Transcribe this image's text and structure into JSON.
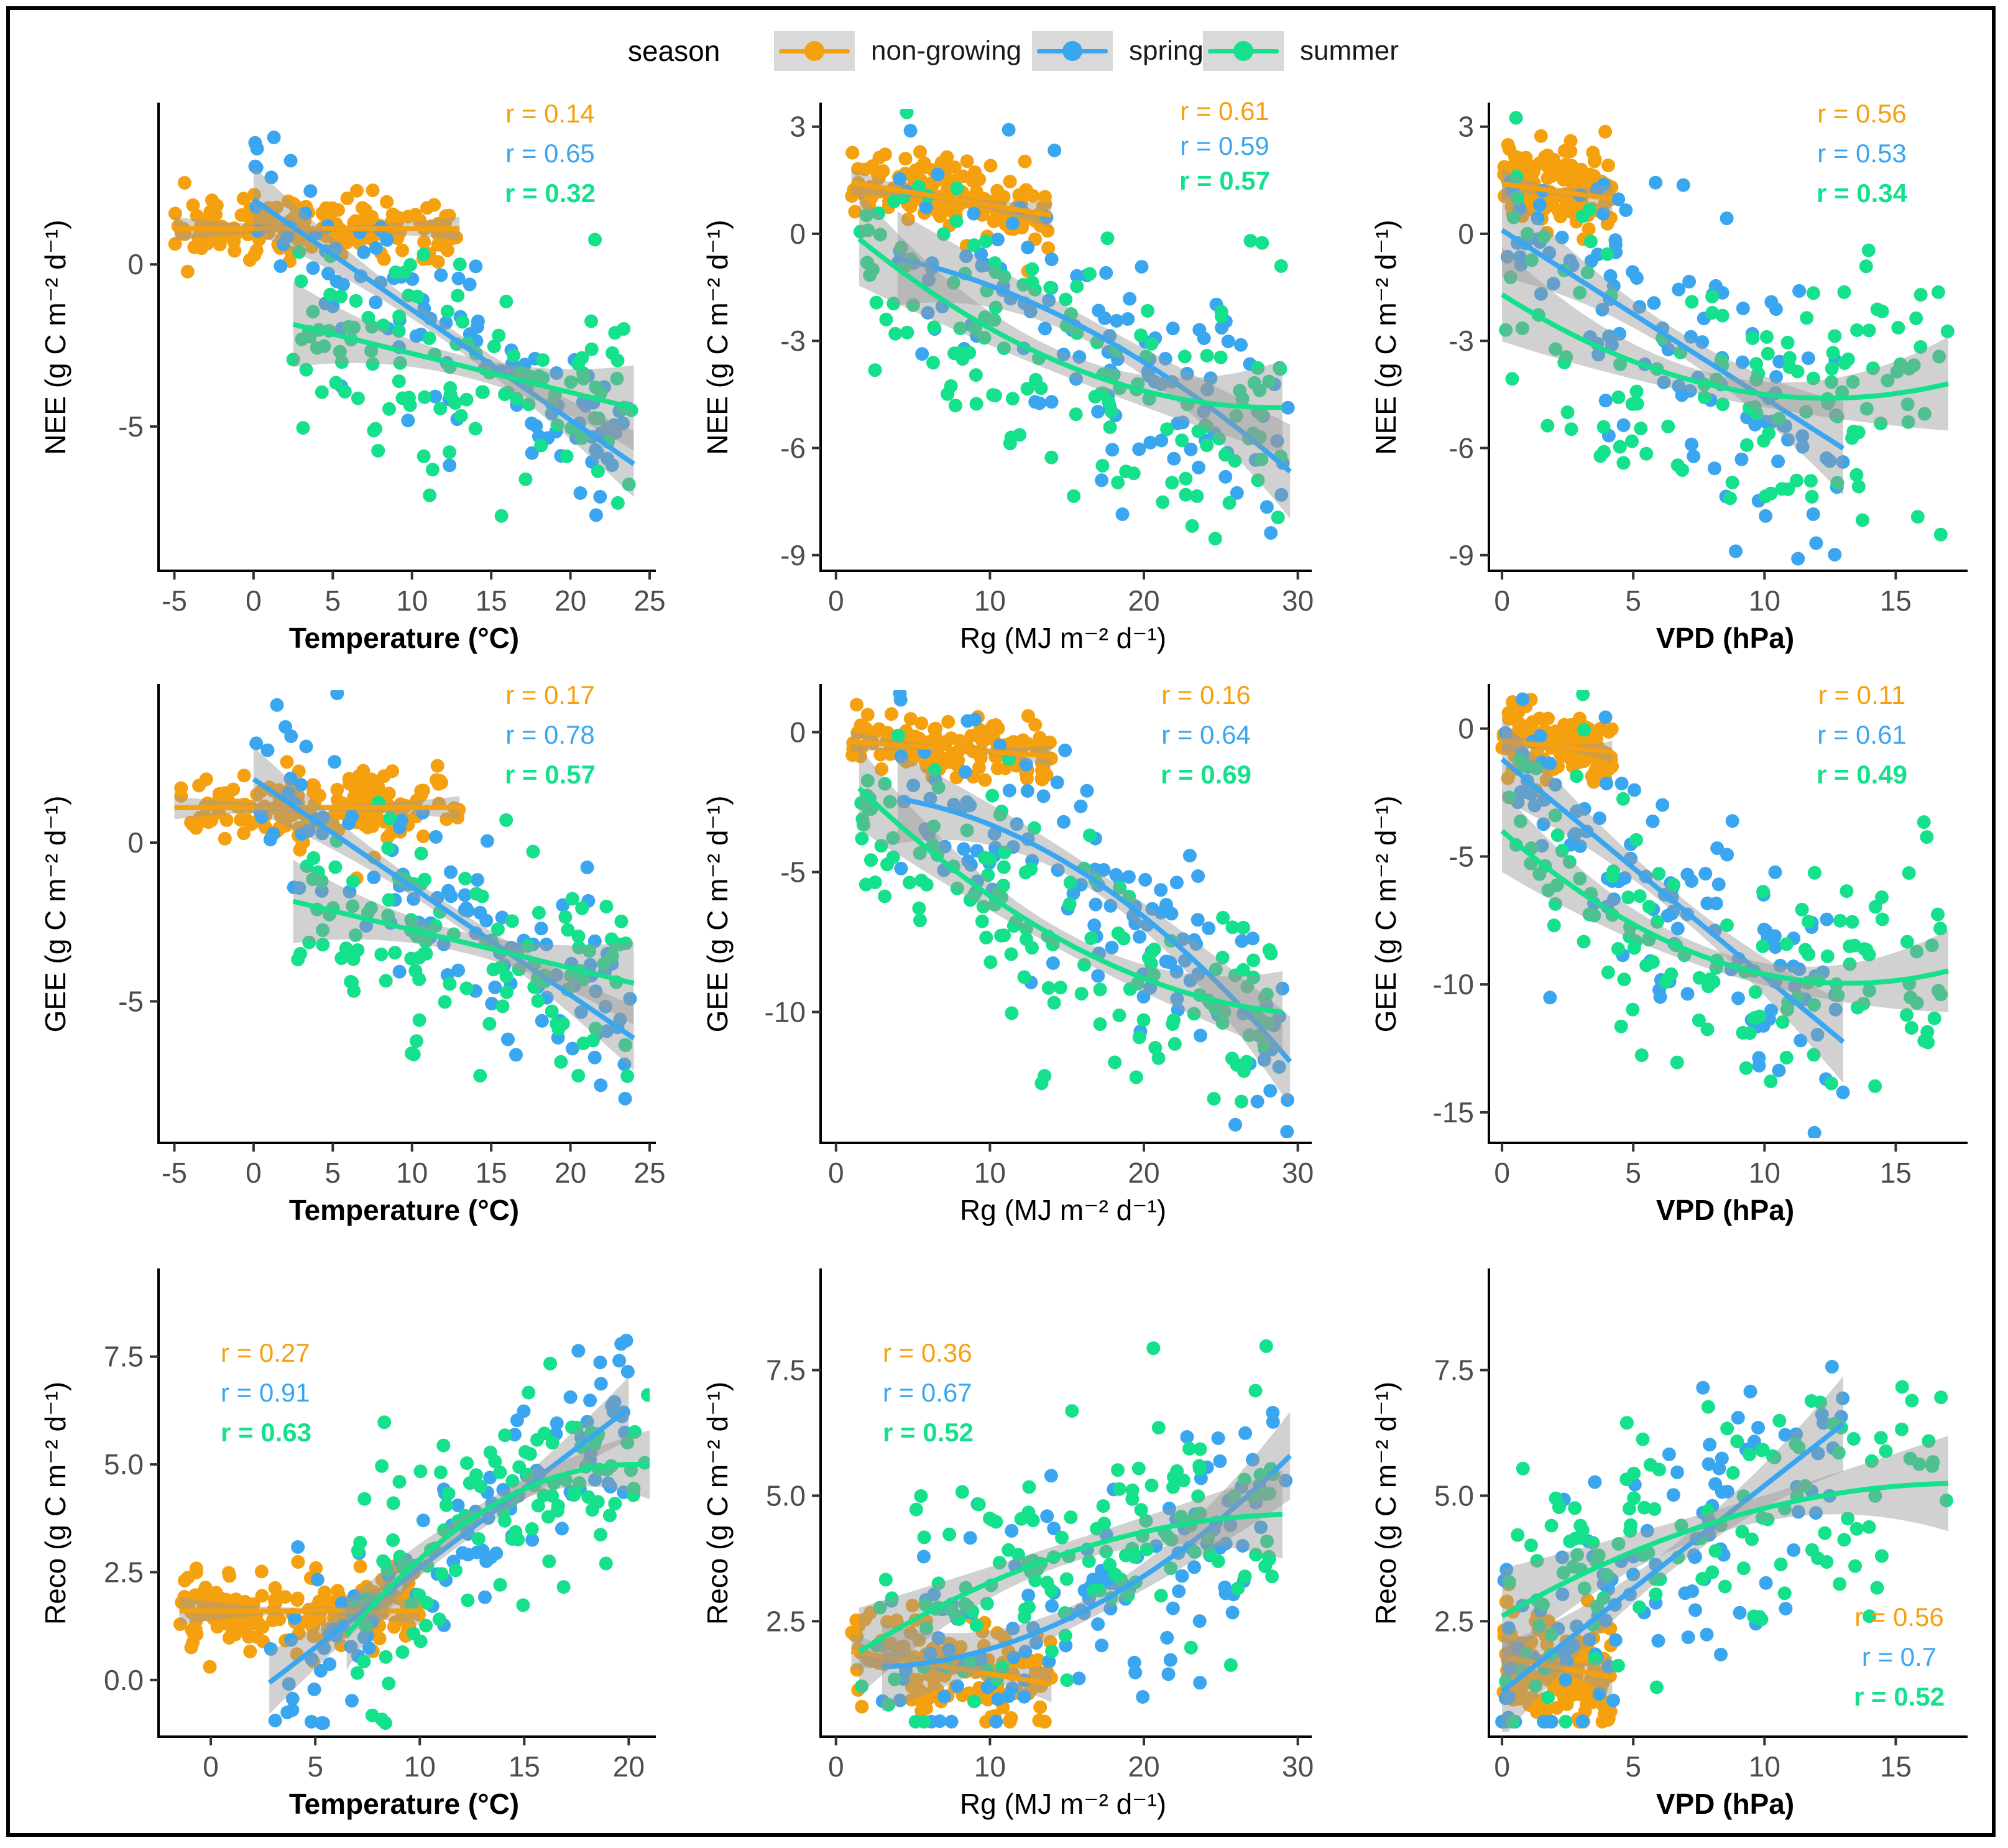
{
  "legend": {
    "title": "season",
    "items": [
      {
        "label": "non-growing",
        "color": "#F5A00F"
      },
      {
        "label": "spring",
        "color": "#3AA6F0"
      },
      {
        "label": "summer",
        "color": "#15E08B"
      }
    ]
  },
  "chart_data": [
    {
      "type": "scatter",
      "id": "nee-temp",
      "ylabel": "NEE (g C m⁻² d⁻¹)",
      "xlabel": "Temperature (°C)",
      "xlabel_bold": true,
      "xlim": [
        -6,
        25
      ],
      "ylim": [
        -9.3,
        4.8
      ],
      "xticks": [
        -5,
        0,
        5,
        10,
        15,
        20,
        25
      ],
      "yticks": [
        0,
        -5
      ],
      "r": [
        {
          "season": "non-growing",
          "text": "r = 0.14"
        },
        {
          "season": "spring",
          "text": "r = 0.65"
        },
        {
          "season": "summer",
          "text": "r = 0.32"
        }
      ],
      "r_pos": "top-right",
      "series": [
        {
          "season": "non-growing",
          "xr": [
            -5,
            13
          ],
          "fit": [
            1.1,
            0.0,
            0.0
          ],
          "yc": 1.2,
          "ys": 0.5,
          "n": 170
        },
        {
          "season": "spring",
          "xr": [
            0,
            24
          ],
          "fit": [
            2.0,
            -0.34,
            0.0
          ],
          "yc": 0,
          "ys": 1.4,
          "n": 110
        },
        {
          "season": "summer",
          "xr": [
            2.5,
            24
          ],
          "fit": [
            -1.55,
            -0.12,
            0.0
          ],
          "yc": 0,
          "ys": 1.8,
          "n": 120
        }
      ]
    },
    {
      "type": "scatter",
      "id": "nee-rg",
      "ylabel": "NEE (g C m⁻² d⁻¹)",
      "xlabel": "Rg (MJ m⁻² d⁻¹)",
      "xlabel_bold": false,
      "xlim": [
        -1,
        30.5
      ],
      "ylim": [
        -9.3,
        3.5
      ],
      "xticks": [
        0,
        10,
        20,
        30
      ],
      "yticks": [
        3,
        0,
        -3,
        -6,
        -9
      ],
      "r": [
        {
          "season": "non-growing",
          "text": "r = 0.61"
        },
        {
          "season": "spring",
          "text": "r = 0.59"
        },
        {
          "season": "summer",
          "text": "r = 0.57"
        }
      ],
      "r_pos": "top-right-small",
      "series": [
        {
          "season": "non-growing",
          "xr": [
            1,
            14
          ],
          "fit": [
            1.5,
            -0.07,
            0.0
          ],
          "yc": 0,
          "ys": 0.5,
          "n": 140
        },
        {
          "season": "spring",
          "xr": [
            4,
            29.5
          ],
          "fit": [
            -0.4,
            -0.05,
            -0.0055
          ],
          "yc": 0,
          "ys": 1.8,
          "n": 120
        },
        {
          "season": "summer",
          "xr": [
            1.5,
            29
          ],
          "fit": [
            0.4,
            -0.37,
            0.0065
          ],
          "yc": 0,
          "ys": 1.8,
          "n": 140
        }
      ]
    },
    {
      "type": "scatter",
      "id": "nee-vpd",
      "ylabel": "NEE (g C m⁻² d⁻¹)",
      "xlabel": "VPD (hPa)",
      "xlabel_bold": true,
      "xlim": [
        -0.5,
        17.5
      ],
      "ylim": [
        -9.3,
        3.5
      ],
      "xticks": [
        0,
        5,
        10,
        15
      ],
      "yticks": [
        3,
        0,
        -3,
        -6,
        -9
      ],
      "r": [
        {
          "season": "non-growing",
          "text": "r = 0.56"
        },
        {
          "season": "spring",
          "text": "r = 0.53"
        },
        {
          "season": "summer",
          "text": "r = 0.34"
        }
      ],
      "r_pos": "top-right",
      "series": [
        {
          "season": "non-growing",
          "xr": [
            0,
            4.2
          ],
          "fit": [
            1.4,
            -0.1,
            0.0
          ],
          "yc": 0,
          "ys": 0.6,
          "n": 150
        },
        {
          "season": "spring",
          "xr": [
            0,
            13
          ],
          "fit": [
            0.1,
            -0.47,
            0.0
          ],
          "yc": 0,
          "ys": 1.8,
          "n": 110
        },
        {
          "season": "summer",
          "xr": [
            0,
            17
          ],
          "fit": [
            -1.7,
            -0.47,
            0.019
          ],
          "yc": 0,
          "ys": 1.8,
          "n": 130
        }
      ]
    },
    {
      "type": "scatter",
      "id": "gee-temp",
      "ylabel": "GEE (g C m⁻² d⁻¹)",
      "xlabel": "Temperature (°C)",
      "xlabel_bold": true,
      "xlim": [
        -6,
        25
      ],
      "ylim": [
        -9.3,
        4.8
      ],
      "xticks": [
        -5,
        0,
        5,
        10,
        15,
        20,
        25
      ],
      "yticks": [
        0,
        -5
      ],
      "r": [
        {
          "season": "non-growing",
          "text": "r = 0.17"
        },
        {
          "season": "spring",
          "text": "r = 0.78"
        },
        {
          "season": "summer",
          "text": "r = 0.57"
        }
      ],
      "r_pos": "top-right",
      "series": [
        {
          "season": "non-growing",
          "xr": [
            -5,
            13
          ],
          "fit": [
            1.1,
            0.0,
            0.0
          ],
          "yc": 1.2,
          "ys": 0.5,
          "n": 170
        },
        {
          "season": "spring",
          "xr": [
            0,
            24
          ],
          "fit": [
            2.0,
            -0.34,
            0.0
          ],
          "yc": 0,
          "ys": 1.4,
          "n": 110
        },
        {
          "season": "summer",
          "xr": [
            2.5,
            24
          ],
          "fit": [
            -1.55,
            -0.12,
            0.0
          ],
          "yc": 0,
          "ys": 1.8,
          "n": 120
        }
      ]
    },
    {
      "type": "scatter",
      "id": "gee-rg",
      "ylabel": "GEE (g C m⁻² d⁻¹)",
      "xlabel": "Rg (MJ m⁻² d⁻¹)",
      "xlabel_bold": false,
      "xlim": [
        -1,
        30.5
      ],
      "ylim": [
        -14.5,
        1.5
      ],
      "xticks": [
        0,
        10,
        20,
        30
      ],
      "yticks": [
        0,
        -5,
        -10
      ],
      "r": [
        {
          "season": "non-growing",
          "text": "r = 0.16"
        },
        {
          "season": "spring",
          "text": "r = 0.64"
        },
        {
          "season": "summer",
          "text": "r = 0.69"
        }
      ],
      "r_pos": "top-right",
      "series": [
        {
          "season": "non-growing",
          "xr": [
            1,
            14
          ],
          "fit": [
            -0.3,
            -0.04,
            0.0
          ],
          "yc": 0,
          "ys": 0.5,
          "n": 140
        },
        {
          "season": "spring",
          "xr": [
            4,
            29.5
          ],
          "fit": [
            -2.2,
            0.0,
            -0.011
          ],
          "yc": 0,
          "ys": 2.2,
          "n": 120
        },
        {
          "season": "summer",
          "xr": [
            1.5,
            29
          ],
          "fit": [
            -1.2,
            -0.55,
            0.0085
          ],
          "yc": 0,
          "ys": 2.0,
          "n": 140
        }
      ]
    },
    {
      "type": "scatter",
      "id": "gee-vpd",
      "ylabel": "GEE (g C m⁻² d⁻¹)",
      "xlabel": "VPD (hPa)",
      "xlabel_bold": true,
      "xlim": [
        -0.5,
        17.5
      ],
      "ylim": [
        -16,
        1.5
      ],
      "xticks": [
        0,
        5,
        10,
        15
      ],
      "yticks": [
        0,
        -5,
        -10,
        -15
      ],
      "r": [
        {
          "season": "non-growing",
          "text": "r = 0.11"
        },
        {
          "season": "spring",
          "text": "r = 0.61"
        },
        {
          "season": "summer",
          "text": "r = 0.49"
        }
      ],
      "r_pos": "top-right",
      "series": [
        {
          "season": "non-growing",
          "xr": [
            0,
            4.2
          ],
          "fit": [
            -0.5,
            -0.1,
            0.0
          ],
          "yc": 0,
          "ys": 0.6,
          "n": 150
        },
        {
          "season": "spring",
          "xr": [
            0,
            13
          ],
          "fit": [
            -1.2,
            -0.85,
            0.0
          ],
          "yc": 0,
          "ys": 2.2,
          "n": 110
        },
        {
          "season": "summer",
          "xr": [
            0,
            17
          ],
          "fit": [
            -4.0,
            -0.9,
            0.034
          ],
          "yc": 0,
          "ys": 2.2,
          "n": 130
        }
      ]
    },
    {
      "type": "scatter",
      "id": "reco-temp",
      "ylabel": "Reco (g C m⁻² d⁻¹)",
      "xlabel": "Temperature (°C)",
      "xlabel_bold": true,
      "xlim": [
        -2.5,
        21
      ],
      "ylim": [
        -1.2,
        9.4
      ],
      "xticks": [
        0,
        5,
        10,
        15,
        20
      ],
      "yticks": [
        0.0,
        2.5,
        5.0,
        7.5
      ],
      "r": [
        {
          "season": "non-growing",
          "text": "r = 0.27"
        },
        {
          "season": "spring",
          "text": "r = 0.91"
        },
        {
          "season": "summer",
          "text": "r = 0.63"
        }
      ],
      "r_pos": "left",
      "series": [
        {
          "season": "non-growing",
          "xr": [
            -1.5,
            10
          ],
          "fit": [
            1.6,
            0.0,
            0.0
          ],
          "yc": 0,
          "ys": 0.45,
          "n": 170
        },
        {
          "season": "spring",
          "xr": [
            2.8,
            20
          ],
          "fit": [
            -1.1,
            0.37,
            0.0
          ],
          "yc": 0,
          "ys": 1.0,
          "n": 110
        },
        {
          "season": "summer",
          "xr": [
            6.5,
            21
          ],
          "fit": [
            -3.6,
            0.85,
            -0.021
          ],
          "yc": 0,
          "ys": 1.1,
          "n": 120
        }
      ]
    },
    {
      "type": "scatter",
      "id": "reco-rg",
      "ylabel": "Reco (g C m⁻² d⁻¹)",
      "xlabel": "Rg (MJ m⁻² d⁻¹)",
      "xlabel_bold": false,
      "xlim": [
        -1,
        30.5
      ],
      "ylim": [
        0.3,
        9.4
      ],
      "xticks": [
        0,
        10,
        20,
        30
      ],
      "yticks": [
        2.5,
        5.0,
        7.5
      ],
      "r": [
        {
          "season": "non-growing",
          "text": "r = 0.36"
        },
        {
          "season": "spring",
          "text": "r = 0.67"
        },
        {
          "season": "summer",
          "text": "r = 0.52"
        }
      ],
      "r_pos": "left",
      "series": [
        {
          "season": "non-growing",
          "xr": [
            1,
            14
          ],
          "fit": [
            1.95,
            -0.05,
            0.0
          ],
          "yc": 0,
          "ys": 0.5,
          "n": 140
        },
        {
          "season": "spring",
          "xr": [
            3,
            29.5
          ],
          "fit": [
            1.6,
            -0.02,
            0.0055
          ],
          "yc": 0,
          "ys": 1.2,
          "n": 120
        },
        {
          "season": "summer",
          "xr": [
            1.5,
            29
          ],
          "fit": [
            1.6,
            0.2,
            -0.0033
          ],
          "yc": 0,
          "ys": 1.2,
          "n": 140
        }
      ]
    },
    {
      "type": "scatter",
      "id": "reco-vpd",
      "ylabel": "Reco (g C m⁻² d⁻¹)",
      "xlabel": "VPD (hPa)",
      "xlabel_bold": true,
      "xlim": [
        -0.5,
        17.5
      ],
      "ylim": [
        0.3,
        9.4
      ],
      "xticks": [
        0,
        5,
        10,
        15
      ],
      "yticks": [
        2.5,
        5.0,
        7.5
      ],
      "r": [
        {
          "season": "non-growing",
          "text": "r = 0.56"
        },
        {
          "season": "spring",
          "text": "r = 0.7"
        },
        {
          "season": "summer",
          "text": "r = 0.52"
        }
      ],
      "r_pos": "bottom-right",
      "series": [
        {
          "season": "non-growing",
          "xr": [
            0,
            4.2
          ],
          "fit": [
            1.8,
            -0.1,
            0.0
          ],
          "yc": 0,
          "ys": 0.6,
          "n": 150
        },
        {
          "season": "spring",
          "xr": [
            0,
            13
          ],
          "fit": [
            1.1,
            0.41,
            0.0
          ],
          "yc": 0,
          "ys": 1.3,
          "n": 110
        },
        {
          "season": "summer",
          "xr": [
            0,
            17
          ],
          "fit": [
            2.6,
            0.3,
            -0.0085
          ],
          "yc": 0,
          "ys": 1.3,
          "n": 130
        }
      ]
    }
  ]
}
